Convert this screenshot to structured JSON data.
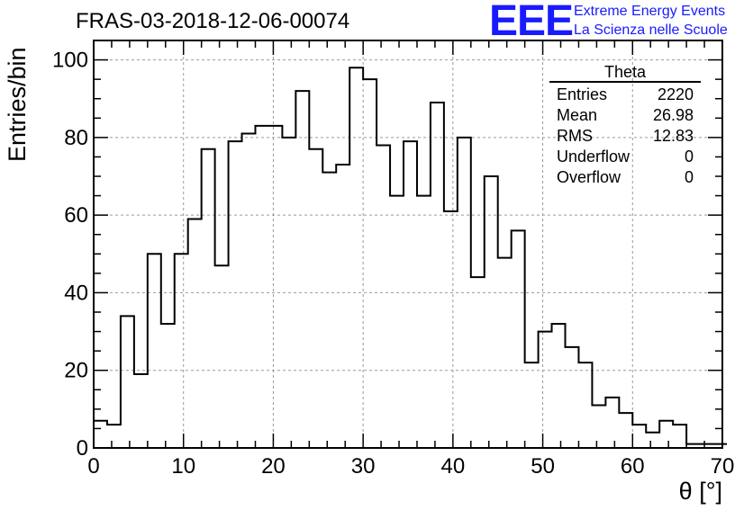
{
  "title": "FRAS-03-2018-12-06-00074",
  "logo": {
    "mark": "EEE",
    "line1": "Extreme Energy Events",
    "line2": "La Scienza nelle Scuole",
    "color": "#1a1aff"
  },
  "stats": {
    "name": "Theta",
    "rows": [
      {
        "label": "Entries",
        "value": "2220"
      },
      {
        "label": "Mean",
        "value": "26.98"
      },
      {
        "label": "RMS",
        "value": "12.83"
      },
      {
        "label": "Underflow",
        "value": "0"
      },
      {
        "label": "Overflow",
        "value": "0"
      }
    ]
  },
  "chart_data": {
    "type": "bar",
    "style": "step-histogram",
    "title": "FRAS-03-2018-12-06-00074",
    "xlabel": "θ [°]",
    "ylabel": "Entries/bin",
    "xlim": [
      0,
      70
    ],
    "ylim": [
      0,
      105
    ],
    "x_ticks": [
      "0",
      "10",
      "20",
      "30",
      "40",
      "50",
      "60",
      "70"
    ],
    "y_ticks": [
      "0",
      "20",
      "40",
      "60",
      "80",
      "100"
    ],
    "grid": true,
    "line_color": "#000000",
    "bin_width": 1.5,
    "bin_edges_start": 0,
    "values": [
      7,
      6,
      34,
      19,
      50,
      32,
      50,
      59,
      77,
      47,
      79,
      81,
      83,
      83,
      80,
      92,
      77,
      71,
      73,
      98,
      95,
      78,
      65,
      79,
      65,
      89,
      61,
      80,
      44,
      70,
      49,
      56,
      22,
      30,
      32,
      26,
      22,
      11,
      13,
      9,
      6,
      4,
      7,
      6,
      1,
      1,
      1
    ]
  }
}
